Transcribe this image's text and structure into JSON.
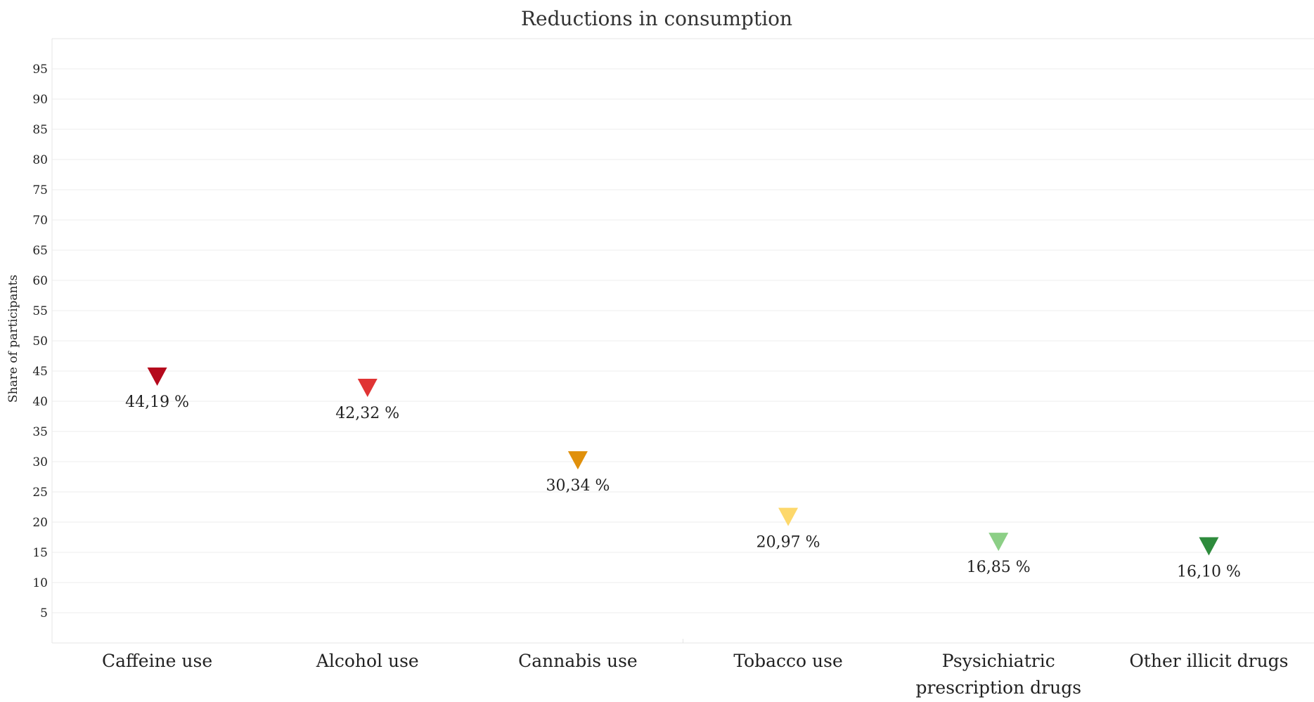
{
  "chart_data": {
    "type": "scatter",
    "marker": "triangle-down",
    "title": "Reductions in consumption",
    "ylabel": "Share of participants",
    "xlabel": "",
    "ylim": [
      0,
      100
    ],
    "yticks": [
      5,
      10,
      15,
      20,
      25,
      30,
      35,
      40,
      45,
      50,
      55,
      60,
      65,
      70,
      75,
      80,
      85,
      90,
      95
    ],
    "grid": true,
    "categories": [
      [
        "Caffeine use"
      ],
      [
        "Alcohol use"
      ],
      [
        "Cannabis use"
      ],
      [
        "Tobacco use"
      ],
      [
        "Psysichiatric",
        "prescription drugs"
      ],
      [
        "Other illicit drugs"
      ]
    ],
    "values": [
      44.19,
      42.32,
      30.34,
      20.97,
      16.85,
      16.1
    ],
    "labels": [
      "44,19 %",
      "42,32 %",
      "30,34 %",
      "20,97 %",
      "16,85 %",
      "16,10 %"
    ],
    "colors": [
      "#b5091c",
      "#e03434",
      "#e0900b",
      "#fdd86b",
      "#8ccf86",
      "#2e8b3c"
    ]
  }
}
